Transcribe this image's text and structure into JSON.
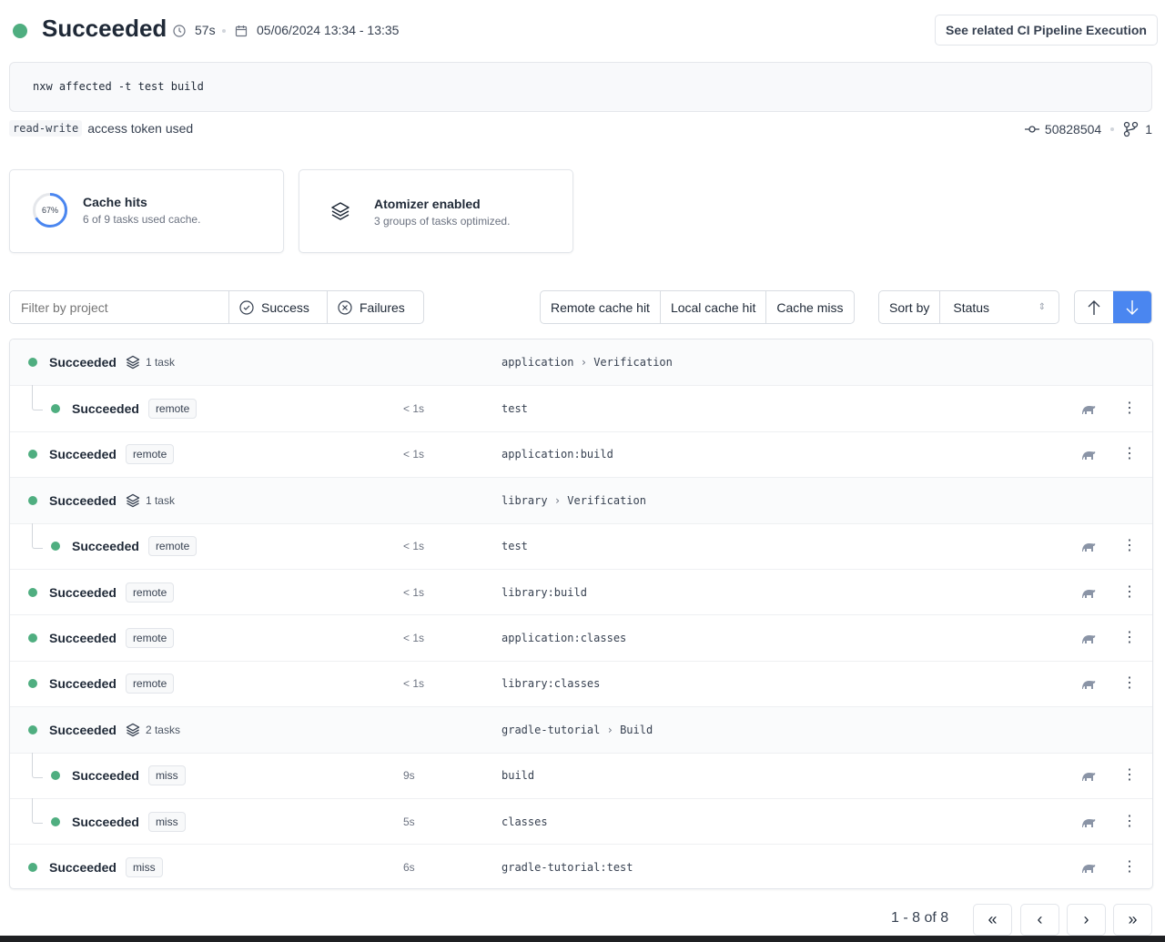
{
  "header": {
    "status": "Succeeded",
    "duration": "57s",
    "date_range": "05/06/2024 13:34 - 13:35",
    "ci_button": "See related CI Pipeline Execution",
    "status_color": "#4fae80"
  },
  "command": "nxw affected -t test build",
  "token": {
    "badge": "read-write",
    "text": "access token used"
  },
  "commit": {
    "sha": "50828504",
    "branches": "1"
  },
  "cards": {
    "cache": {
      "percent": "67%",
      "percent_value": 67,
      "title": "Cache hits",
      "subtitle": "6 of 9 tasks used cache."
    },
    "atomizer": {
      "title": "Atomizer enabled",
      "subtitle": "3 groups of tasks optimized."
    }
  },
  "filters": {
    "placeholder": "Filter by project",
    "success": "Success",
    "failures": "Failures",
    "remote": "Remote cache hit",
    "local": "Local cache hit",
    "miss": "Cache miss",
    "sort_label": "Sort by",
    "sort_value": "Status",
    "sort_direction": "descending",
    "accent": "#4a86f0"
  },
  "rows": [
    {
      "type": "group",
      "status": "Succeeded",
      "count": "1 task",
      "project": "application",
      "target": "Verification"
    },
    {
      "type": "child",
      "status": "Succeeded",
      "cache": "remote",
      "duration": "< 1s",
      "target": "test"
    },
    {
      "type": "task",
      "status": "Succeeded",
      "cache": "remote",
      "duration": "< 1s",
      "target": "application:build"
    },
    {
      "type": "group",
      "status": "Succeeded",
      "count": "1 task",
      "project": "library",
      "target": "Verification"
    },
    {
      "type": "child",
      "status": "Succeeded",
      "cache": "remote",
      "duration": "< 1s",
      "target": "test"
    },
    {
      "type": "task",
      "status": "Succeeded",
      "cache": "remote",
      "duration": "< 1s",
      "target": "library:build"
    },
    {
      "type": "task",
      "status": "Succeeded",
      "cache": "remote",
      "duration": "< 1s",
      "target": "application:classes"
    },
    {
      "type": "task",
      "status": "Succeeded",
      "cache": "remote",
      "duration": "< 1s",
      "target": "library:classes"
    },
    {
      "type": "group",
      "status": "Succeeded",
      "count": "2 tasks",
      "project": "gradle-tutorial",
      "target": "Build"
    },
    {
      "type": "child",
      "status": "Succeeded",
      "cache": "miss",
      "duration": "9s",
      "target": "build"
    },
    {
      "type": "child",
      "status": "Succeeded",
      "cache": "miss",
      "duration": "5s",
      "target": "classes"
    },
    {
      "type": "task",
      "status": "Succeeded",
      "cache": "miss",
      "duration": "6s",
      "target": "gradle-tutorial:test"
    }
  ],
  "pagination": {
    "text": "1 - 8 of 8"
  }
}
